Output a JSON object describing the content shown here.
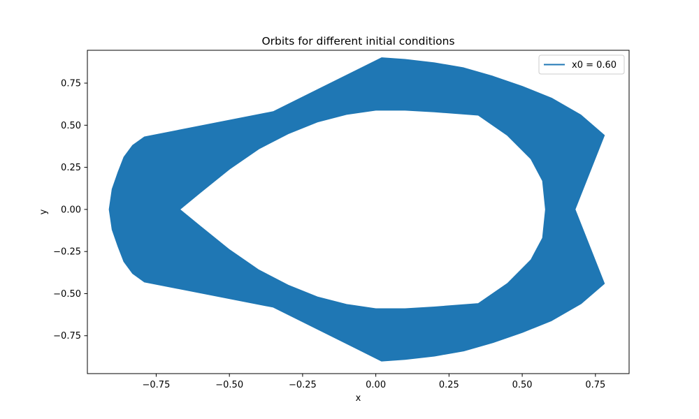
{
  "chart_data": {
    "type": "line",
    "title": "Orbits for different initial conditions",
    "xlabel": "x",
    "ylabel": "y",
    "xlim": [
      -0.985,
      0.865
    ],
    "ylim": [
      -0.975,
      0.945
    ],
    "xticks": [
      -0.75,
      -0.5,
      -0.25,
      0.0,
      0.25,
      0.5,
      0.75
    ],
    "xtick_labels": [
      "−0.75",
      "−0.50",
      "−0.25",
      "0.00",
      "0.25",
      "0.50",
      "0.75"
    ],
    "yticks": [
      -0.75,
      -0.5,
      -0.25,
      0.0,
      0.25,
      0.5,
      0.75
    ],
    "ytick_labels": [
      "−0.75",
      "−0.50",
      "−0.25",
      "0.00",
      "0.25",
      "0.50",
      "0.75"
    ],
    "grid": false,
    "legend_position": "top-right",
    "series": [
      {
        "name": "x0 = 0.60",
        "color": "#1f77b4",
        "outer_boundary": [
          [
            0.02,
            0.9
          ],
          [
            0.1,
            0.89
          ],
          [
            0.2,
            0.87
          ],
          [
            0.3,
            0.84
          ],
          [
            0.4,
            0.79
          ],
          [
            0.5,
            0.73
          ],
          [
            0.6,
            0.66
          ],
          [
            0.7,
            0.56
          ],
          [
            0.78,
            0.44
          ],
          [
            0.68,
            0.0
          ],
          [
            0.78,
            -0.44
          ],
          [
            0.7,
            -0.56
          ],
          [
            0.6,
            -0.66
          ],
          [
            0.5,
            -0.73
          ],
          [
            0.4,
            -0.79
          ],
          [
            0.3,
            -0.84
          ],
          [
            0.2,
            -0.87
          ],
          [
            0.1,
            -0.89
          ],
          [
            0.02,
            -0.9
          ],
          [
            -0.35,
            -0.58
          ],
          [
            -0.79,
            -0.43
          ],
          [
            -0.83,
            -0.38
          ],
          [
            -0.86,
            -0.31
          ],
          [
            -0.88,
            -0.22
          ],
          [
            -0.9,
            -0.12
          ],
          [
            -0.91,
            0.0
          ],
          [
            -0.9,
            0.12
          ],
          [
            -0.88,
            0.22
          ],
          [
            -0.86,
            0.31
          ],
          [
            -0.83,
            0.38
          ],
          [
            -0.79,
            0.43
          ],
          [
            -0.35,
            0.58
          ]
        ],
        "inner_boundary": [
          [
            -0.67,
            0.0
          ],
          [
            -0.6,
            0.1
          ],
          [
            -0.5,
            0.24
          ],
          [
            -0.4,
            0.36
          ],
          [
            -0.3,
            0.45
          ],
          [
            -0.2,
            0.52
          ],
          [
            -0.1,
            0.565
          ],
          [
            0.0,
            0.59
          ],
          [
            0.1,
            0.59
          ],
          [
            0.2,
            0.58
          ],
          [
            0.35,
            0.56
          ],
          [
            0.45,
            0.44
          ],
          [
            0.53,
            0.3
          ],
          [
            0.57,
            0.17
          ],
          [
            0.58,
            0.0
          ],
          [
            0.57,
            -0.17
          ],
          [
            0.53,
            -0.3
          ],
          [
            0.45,
            -0.44
          ],
          [
            0.35,
            -0.56
          ],
          [
            0.2,
            -0.58
          ],
          [
            0.1,
            -0.59
          ],
          [
            0.0,
            -0.59
          ],
          [
            -0.1,
            -0.565
          ],
          [
            -0.2,
            -0.52
          ],
          [
            -0.3,
            -0.45
          ],
          [
            -0.4,
            -0.36
          ],
          [
            -0.5,
            -0.24
          ],
          [
            -0.6,
            -0.1
          ]
        ]
      }
    ]
  }
}
